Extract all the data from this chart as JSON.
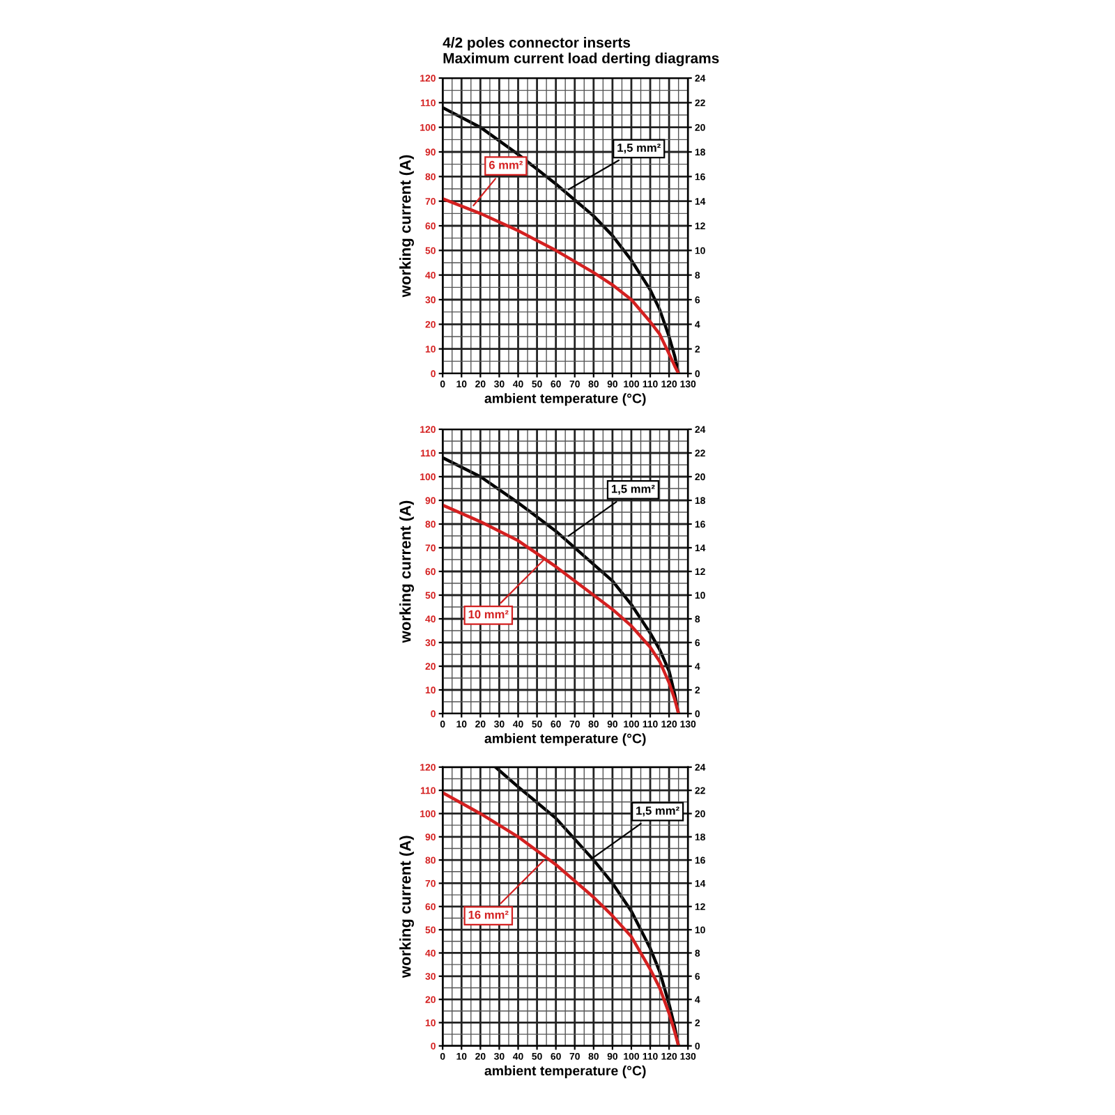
{
  "chart_data": [
    {
      "type": "line",
      "title": "4/2 poles connector inserts",
      "subtitle": "Maximum current load derting diagrams",
      "xlabel": "ambient temperature (°C)",
      "ylabel": "working current (A)",
      "xlim": [
        0,
        130
      ],
      "xticks": [
        0,
        10,
        20,
        30,
        40,
        50,
        60,
        70,
        80,
        90,
        100,
        110,
        120,
        130
      ],
      "ylim": [
        0,
        120
      ],
      "yticks": [
        0,
        10,
        20,
        30,
        40,
        50,
        60,
        70,
        80,
        90,
        100,
        110,
        120
      ],
      "y2lim": [
        0,
        24
      ],
      "y2ticks": [
        0,
        2,
        4,
        6,
        8,
        10,
        12,
        14,
        16,
        18,
        20,
        22,
        24
      ],
      "grid": true,
      "series": [
        {
          "color": "#000000",
          "axis": "y2",
          "x": [
            0,
            20,
            40,
            60,
            80,
            90,
            100,
            110,
            115,
            120,
            123,
            125
          ],
          "values": [
            21.6,
            20,
            17.8,
            15.4,
            12.8,
            11.2,
            9.2,
            6.8,
            5.2,
            3,
            1.4,
            0
          ]
        },
        {
          "color": "#d42020",
          "axis": "y",
          "x": [
            0,
            20,
            40,
            60,
            80,
            90,
            100,
            110,
            115,
            120,
            123,
            125
          ],
          "values": [
            71,
            65,
            58,
            50,
            41,
            36,
            30,
            21,
            16,
            8,
            3,
            0
          ]
        }
      ],
      "annotations": [
        {
          "text": "1,5 mm²",
          "x": 65,
          "y": 74
        },
        {
          "text": "6 mm²",
          "x": 15,
          "y": 67
        }
      ]
    },
    {
      "type": "line",
      "xlabel": "ambient temperature (°C)",
      "ylabel": "working current (A)",
      "xlim": [
        0,
        130
      ],
      "xticks": [
        0,
        10,
        20,
        30,
        40,
        50,
        60,
        70,
        80,
        90,
        100,
        110,
        120,
        130
      ],
      "ylim": [
        0,
        120
      ],
      "yticks": [
        0,
        10,
        20,
        30,
        40,
        50,
        60,
        70,
        80,
        90,
        100,
        110,
        120
      ],
      "y2lim": [
        0,
        24
      ],
      "y2ticks": [
        0,
        2,
        4,
        6,
        8,
        10,
        12,
        14,
        16,
        18,
        20,
        22,
        24
      ],
      "grid": true,
      "series": [
        {
          "color": "#000000",
          "axis": "y2",
          "x": [
            0,
            20,
            40,
            60,
            80,
            90,
            100,
            110,
            115,
            120,
            123,
            125
          ],
          "values": [
            21.6,
            20,
            17.8,
            15.4,
            12.6,
            11.2,
            9.2,
            6.8,
            5.4,
            3.6,
            1.6,
            0
          ]
        },
        {
          "color": "#d42020",
          "axis": "y",
          "x": [
            0,
            20,
            40,
            60,
            80,
            90,
            100,
            110,
            115,
            120,
            123,
            125
          ],
          "values": [
            88,
            81,
            73,
            62,
            50,
            44,
            37,
            28,
            22,
            13,
            6,
            0
          ]
        }
      ],
      "annotations": [
        {
          "text": "1,5 mm²",
          "x": 65,
          "y": 74
        },
        {
          "text": "10 mm²",
          "x": 55,
          "y": 66
        }
      ]
    },
    {
      "type": "line",
      "xlabel": "ambient temperature (°C)",
      "ylabel": "working current (A)",
      "xlim": [
        0,
        130
      ],
      "xticks": [
        0,
        10,
        20,
        30,
        40,
        50,
        60,
        70,
        80,
        90,
        100,
        110,
        120,
        130
      ],
      "ylim": [
        0,
        120
      ],
      "yticks": [
        0,
        10,
        20,
        30,
        40,
        50,
        60,
        70,
        80,
        90,
        100,
        110,
        120
      ],
      "y2lim": [
        0,
        24
      ],
      "y2ticks": [
        0,
        2,
        4,
        6,
        8,
        10,
        12,
        14,
        16,
        18,
        20,
        22,
        24
      ],
      "grid": true,
      "series": [
        {
          "color": "#000000",
          "axis": "y2",
          "x": [
            28,
            40,
            60,
            80,
            90,
            100,
            110,
            115,
            120,
            123,
            125
          ],
          "values": [
            24,
            22.3,
            19.6,
            16,
            14,
            11.6,
            8.4,
            6.4,
            3.6,
            1.6,
            0
          ]
        },
        {
          "color": "#d42020",
          "axis": "y",
          "x": [
            0,
            20,
            40,
            55,
            60,
            80,
            90,
            100,
            110,
            115,
            120,
            123,
            125
          ],
          "values": [
            109,
            100,
            90,
            81,
            78,
            64,
            56,
            47,
            33,
            25,
            14,
            6,
            0
          ]
        }
      ],
      "annotations": [
        {
          "text": "1,5 mm²",
          "x": 78,
          "y": 80
        },
        {
          "text": "16 mm²",
          "x": 55,
          "y": 81
        }
      ]
    }
  ]
}
